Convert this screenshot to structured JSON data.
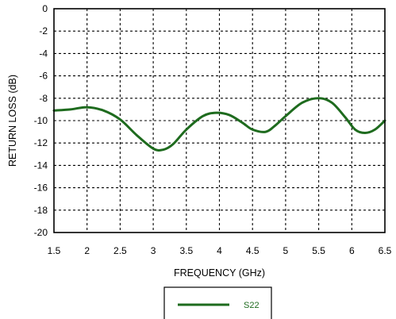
{
  "chart_data": {
    "type": "line",
    "title": "",
    "xlabel": "FREQUENCY (GHz)",
    "ylabel": "RETURN LOSS (dB)",
    "xlim": [
      1.5,
      6.5
    ],
    "ylim": [
      -20,
      0
    ],
    "xticks": [
      "1.5",
      "2",
      "2.5",
      "3",
      "3.5",
      "4",
      "4.5",
      "5",
      "5.5",
      "6",
      "6.5"
    ],
    "yticks": [
      "0",
      "-2",
      "-4",
      "-6",
      "-8",
      "-10",
      "-12",
      "-14",
      "-16",
      "-18",
      "-20"
    ],
    "grid": true,
    "legend_position": "bottom-center",
    "series": [
      {
        "name": "S22",
        "color": "#1e6b1e",
        "x": [
          1.5,
          1.75,
          2.0,
          2.25,
          2.5,
          2.75,
          3.0,
          3.15,
          3.3,
          3.5,
          3.75,
          3.95,
          4.15,
          4.35,
          4.5,
          4.7,
          4.85,
          5.0,
          5.25,
          5.5,
          5.7,
          5.9,
          6.05,
          6.2,
          6.35,
          6.5
        ],
        "y": [
          -9.1,
          -9.0,
          -8.8,
          -9.1,
          -9.9,
          -11.3,
          -12.5,
          -12.6,
          -12.1,
          -10.8,
          -9.6,
          -9.3,
          -9.5,
          -10.2,
          -10.8,
          -11.0,
          -10.4,
          -9.6,
          -8.4,
          -8.0,
          -8.4,
          -9.7,
          -10.8,
          -11.1,
          -10.8,
          -10.0
        ]
      }
    ]
  }
}
